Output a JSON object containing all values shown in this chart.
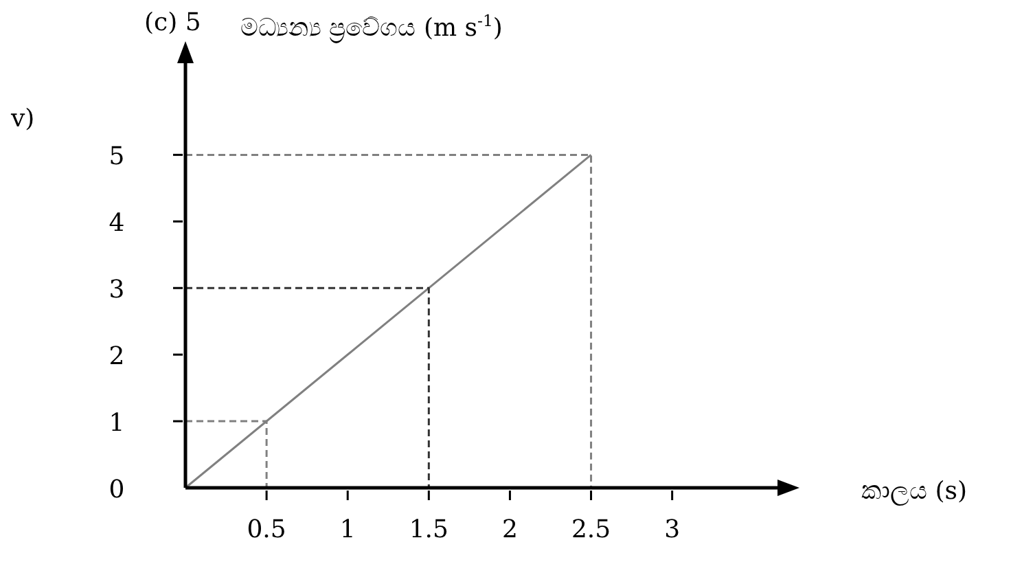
{
  "chart_data": {
    "type": "line",
    "xlabel": "කාලය (s)",
    "ylabel": "මධ්‍යන්‍ය ප්‍රවේගය (m s$^{-1}$)",
    "annotations": [
      "(c) 5",
      "v)"
    ],
    "xlim": [
      0,
      3.7
    ],
    "ylim": [
      0,
      6.5
    ],
    "xticks": [
      0.5,
      1,
      1.5,
      2,
      2.5,
      3
    ],
    "yticks": [
      0,
      1,
      2,
      3,
      4,
      5
    ],
    "grid": false,
    "series": [
      {
        "color": "#808080",
        "x": [
          0,
          2.5
        ],
        "values": [
          0,
          5
        ],
        "line_style": "solid"
      },
      {
        "color": "#808080",
        "x": [
          0,
          0.5,
          0.5
        ],
        "values": [
          1,
          1,
          0
        ],
        "line_style": "dashed"
      },
      {
        "color": "#333333",
        "x": [
          0,
          1.5,
          1.5
        ],
        "values": [
          3,
          3,
          0
        ],
        "line_style": "dashed"
      },
      {
        "color": "#808080",
        "x": [
          0,
          2.5,
          2.5
        ],
        "values": [
          5,
          5,
          0
        ],
        "line_style": "dashed"
      }
    ]
  }
}
